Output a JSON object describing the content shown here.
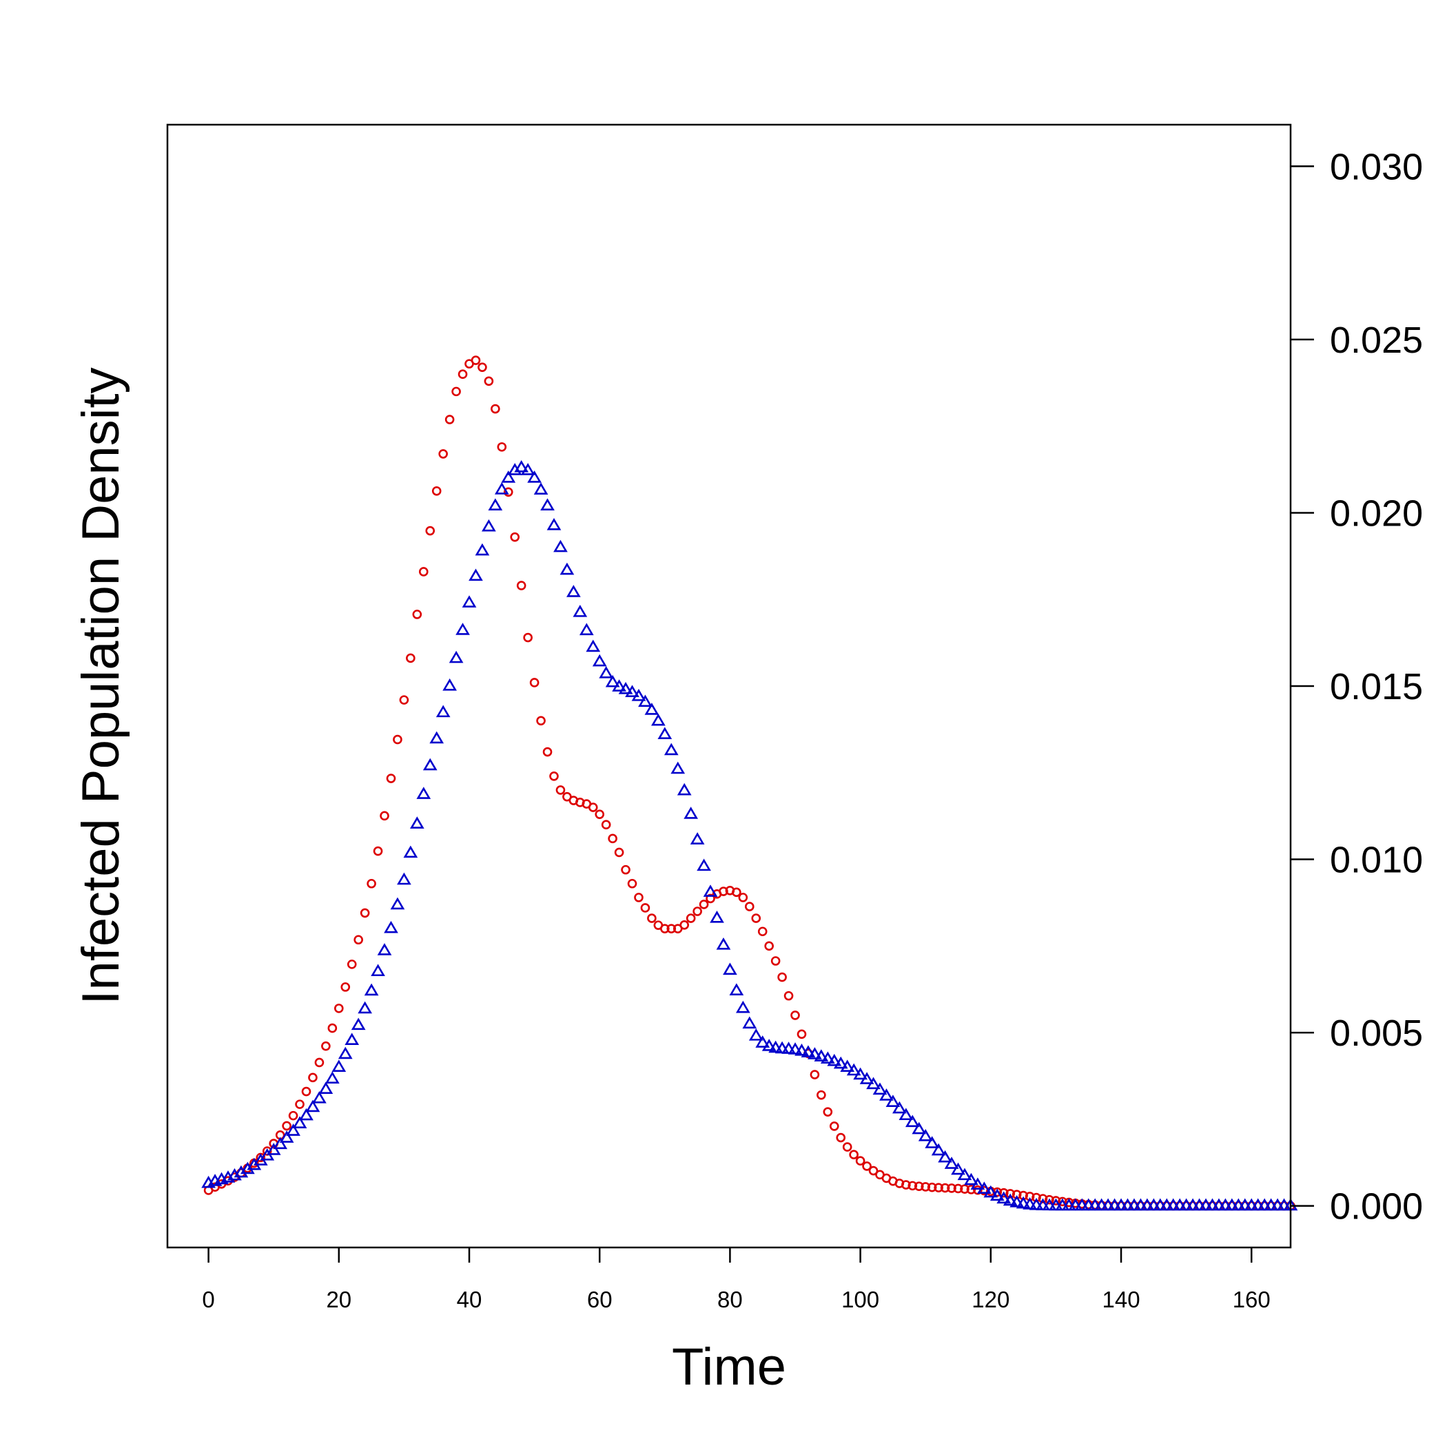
{
  "chart_data": {
    "type": "scatter",
    "title": "",
    "xlabel": "Time",
    "ylabel": "Infected Population Density",
    "xlim": [
      -6.3,
      166
    ],
    "ylim": [
      -0.0012,
      0.0312
    ],
    "x_ticks": [
      0,
      20,
      40,
      60,
      80,
      100,
      120,
      140,
      160
    ],
    "x_tick_labels": [
      "0",
      "20",
      "40",
      "60",
      "80",
      "100",
      "120",
      "140",
      "160"
    ],
    "y_ticks": [
      0.0,
      0.005,
      0.01,
      0.015,
      0.02,
      0.025,
      0.03
    ],
    "y_tick_labels": [
      "0.000",
      "0.005",
      "0.010",
      "0.015",
      "0.020",
      "0.025",
      "0.030"
    ],
    "y_axis_side": "right",
    "grid": false,
    "x_step": 1,
    "x_start": 0,
    "x_end": 166,
    "series": [
      {
        "name": "red circles",
        "marker": "circle",
        "color": "#dd0000",
        "anchors": [
          [
            0,
            0.00045
          ],
          [
            5,
            0.00095
          ],
          [
            10,
            0.0018
          ],
          [
            15,
            0.0033
          ],
          [
            20,
            0.0057
          ],
          [
            25,
            0.0093
          ],
          [
            30,
            0.0146
          ],
          [
            33,
            0.0183
          ],
          [
            36,
            0.0217
          ],
          [
            38,
            0.0235
          ],
          [
            40,
            0.0243
          ],
          [
            41,
            0.0244
          ],
          [
            42,
            0.0242
          ],
          [
            43,
            0.0238
          ],
          [
            44,
            0.023
          ],
          [
            45,
            0.0219
          ],
          [
            46,
            0.0206
          ],
          [
            47,
            0.0193
          ],
          [
            48,
            0.0179
          ],
          [
            49,
            0.0164
          ],
          [
            50,
            0.0151
          ],
          [
            51,
            0.014
          ],
          [
            52,
            0.0131
          ],
          [
            53,
            0.0124
          ],
          [
            54,
            0.012
          ],
          [
            56,
            0.0117
          ],
          [
            58,
            0.0116
          ],
          [
            59,
            0.0115
          ],
          [
            60,
            0.0113
          ],
          [
            61,
            0.011
          ],
          [
            62,
            0.0106
          ],
          [
            63,
            0.0102
          ],
          [
            64,
            0.0097
          ],
          [
            65,
            0.0093
          ],
          [
            66,
            0.0089
          ],
          [
            67,
            0.0086
          ],
          [
            68,
            0.0083
          ],
          [
            69,
            0.0081
          ],
          [
            70,
            0.008
          ],
          [
            72,
            0.008
          ],
          [
            74,
            0.0083
          ],
          [
            76,
            0.0087
          ],
          [
            78,
            0.009
          ],
          [
            80,
            0.0091
          ],
          [
            82,
            0.0089
          ],
          [
            84,
            0.0083
          ],
          [
            86,
            0.0075
          ],
          [
            88,
            0.0066
          ],
          [
            90,
            0.0055
          ],
          [
            92,
            0.0044
          ],
          [
            94,
            0.0032
          ],
          [
            96,
            0.0023
          ],
          [
            98,
            0.0017
          ],
          [
            100,
            0.0013
          ],
          [
            103,
            0.0009
          ],
          [
            106,
            0.00065
          ],
          [
            110,
            0.00055
          ],
          [
            115,
            0.0005
          ],
          [
            120,
            0.00042
          ],
          [
            125,
            0.0003
          ],
          [
            130,
            0.00015
          ],
          [
            135,
            4e-05
          ],
          [
            140,
            0.0
          ],
          [
            166,
            0.0
          ]
        ]
      },
      {
        "name": "blue triangles",
        "marker": "triangle",
        "color": "#0000cc",
        "anchors": [
          [
            0,
            0.00065
          ],
          [
            5,
            0.00095
          ],
          [
            10,
            0.0016
          ],
          [
            15,
            0.0026
          ],
          [
            20,
            0.004
          ],
          [
            25,
            0.0062
          ],
          [
            30,
            0.0094
          ],
          [
            34,
            0.0127
          ],
          [
            37,
            0.015
          ],
          [
            40,
            0.0174
          ],
          [
            42,
            0.0189
          ],
          [
            44,
            0.0202
          ],
          [
            46,
            0.021
          ],
          [
            48,
            0.0213
          ],
          [
            50,
            0.021
          ],
          [
            52,
            0.0202
          ],
          [
            54,
            0.019
          ],
          [
            56,
            0.0177
          ],
          [
            58,
            0.0166
          ],
          [
            60,
            0.0157
          ],
          [
            62,
            0.0151
          ],
          [
            64,
            0.0149
          ],
          [
            66,
            0.0147
          ],
          [
            68,
            0.0143
          ],
          [
            70,
            0.0136
          ],
          [
            72,
            0.0126
          ],
          [
            74,
            0.0113
          ],
          [
            76,
            0.0098
          ],
          [
            78,
            0.0083
          ],
          [
            80,
            0.0068
          ],
          [
            82,
            0.0057
          ],
          [
            84,
            0.0049
          ],
          [
            86,
            0.0046
          ],
          [
            90,
            0.0045
          ],
          [
            94,
            0.0043
          ],
          [
            98,
            0.004
          ],
          [
            102,
            0.0035
          ],
          [
            106,
            0.0028
          ],
          [
            110,
            0.002
          ],
          [
            114,
            0.0012
          ],
          [
            118,
            0.0006
          ],
          [
            122,
            0.0002
          ],
          [
            126,
            3e-05
          ],
          [
            130,
            0.0
          ],
          [
            166,
            0.0
          ]
        ]
      }
    ]
  }
}
